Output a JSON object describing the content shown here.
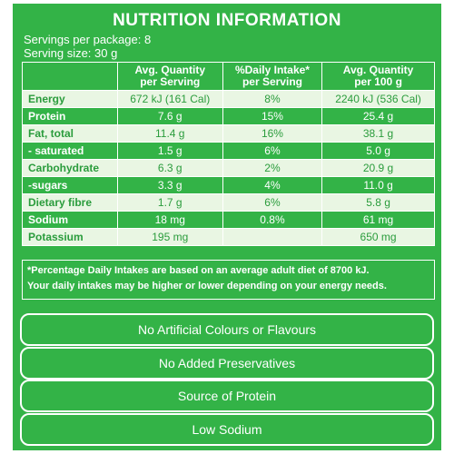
{
  "title": "NUTRITION INFORMATION",
  "servings": [
    "Servings per package: 8",
    "Serving size: 30 g"
  ],
  "table": {
    "header": [
      [
        "Avg. Quantity",
        "per Serving"
      ],
      [
        "%Daily Intake*",
        "per Serving"
      ],
      [
        "Avg. Quantity",
        "per 100 g"
      ]
    ],
    "rows": [
      {
        "name": "Energy",
        "serving": "672 kJ (161 Cal)",
        "daily": "8%",
        "per100": "2240 kJ (536 Cal)"
      },
      {
        "name": "Protein",
        "serving": "7.6 g",
        "daily": "15%",
        "per100": "25.4 g"
      },
      {
        "name": "Fat, total",
        "serving": "11.4 g",
        "daily": "16%",
        "per100": "38.1 g"
      },
      {
        "name": "- saturated",
        "serving": "1.5 g",
        "daily": "6%",
        "per100": "5.0 g"
      },
      {
        "name": "Carbohydrate",
        "serving": "6.3 g",
        "daily": "2%",
        "per100": "20.9 g"
      },
      {
        "name": "-sugars",
        "serving": "3.3 g",
        "daily": "4%",
        "per100": "11.0 g"
      },
      {
        "name": "Dietary fibre",
        "serving": "1.7 g",
        "daily": "6%",
        "per100": "5.8 g"
      },
      {
        "name": "Sodium",
        "serving": "18 mg",
        "daily": "0.8%",
        "per100": "61 mg"
      },
      {
        "name": "Potassium",
        "serving": "195 mg",
        "per100": "650 mg"
      }
    ]
  },
  "footnote": [
    "*Percentage Daily Intakes are based on an average adult diet of 8700 kJ.",
    "Your daily intakes may be higher or lower depending on your energy needs."
  ],
  "claims": [
    "No Artificial Colours or Flavours",
    "No Added Preservatives",
    "Source of Protein",
    "Low Sodium"
  ]
}
